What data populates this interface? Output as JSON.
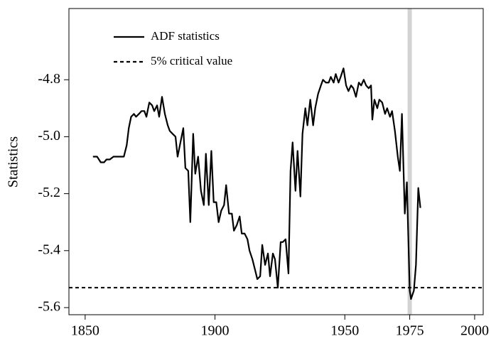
{
  "chart_data": {
    "type": "line",
    "y_label": "Statistics",
    "xlim": [
      1843.75,
      2003.3
    ],
    "ylim": [
      -5.625,
      -4.55
    ],
    "xticks": [
      1850,
      1900,
      1950,
      1975,
      2000
    ],
    "yticks": [
      -4.8,
      {
        "value": -5,
        "label": "-5.0"
      },
      -5.2,
      -5.4,
      -5.6
    ],
    "legend": "upper left",
    "highlight_x": 1975,
    "highlight_color": "#d3d3d3",
    "x": [
      1853.0,
      1854.6,
      1856.0,
      1857.3,
      1858.2,
      1859.5,
      1860.9,
      1862.2,
      1863.6,
      1864.9,
      1866.0,
      1866.8,
      1867.7,
      1868.8,
      1869.6,
      1870.7,
      1871.7,
      1872.8,
      1873.6,
      1874.7,
      1875.8,
      1876.6,
      1877.7,
      1878.5,
      1879.6,
      1880.7,
      1881.8,
      1882.6,
      1883.7,
      1884.8,
      1885.6,
      1886.7,
      1887.8,
      1888.6,
      1889.7,
      1890.5,
      1891.6,
      1892.4,
      1893.5,
      1894.6,
      1895.7,
      1896.5,
      1897.6,
      1898.6,
      1899.5,
      1900.5,
      1901.4,
      1902.4,
      1903.5,
      1904.3,
      1905.4,
      1906.5,
      1907.3,
      1908.4,
      1909.5,
      1910.3,
      1911.4,
      1912.5,
      1913.3,
      1914.4,
      1915.5,
      1916.3,
      1917.4,
      1918.2,
      1919.3,
      1920.4,
      1921.2,
      1922.3,
      1923.1,
      1924.2,
      1925.3,
      1926.1,
      1927.2,
      1928.3,
      1929.1,
      1929.9,
      1931.0,
      1931.8,
      1932.9,
      1933.7,
      1934.8,
      1935.6,
      1936.7,
      1937.8,
      1938.6,
      1939.7,
      1940.8,
      1941.6,
      1942.7,
      1943.8,
      1944.6,
      1945.7,
      1946.5,
      1947.6,
      1948.4,
      1949.5,
      1950.5,
      1951.4,
      1952.4,
      1953.3,
      1954.3,
      1955.4,
      1956.3,
      1957.3,
      1958.2,
      1959.2,
      1960.1,
      1960.6,
      1961.4,
      1962.5,
      1963.3,
      1964.4,
      1965.5,
      1966.3,
      1967.4,
      1968.2,
      1969.3,
      1970.4,
      1971.2,
      1972.0,
      1973.1,
      1973.9,
      1975.0,
      1975.5,
      1976.6,
      1977.4,
      1978.3,
      1979.1
    ],
    "series": [
      {
        "name": "ADF statistics",
        "color": "#000000",
        "dash": "solid",
        "values": [
          -5.07,
          -5.07,
          -5.09,
          -5.09,
          -5.08,
          -5.08,
          -5.07,
          -5.07,
          -5.07,
          -5.07,
          -5.03,
          -4.97,
          -4.93,
          -4.92,
          -4.93,
          -4.92,
          -4.91,
          -4.91,
          -4.93,
          -4.88,
          -4.89,
          -4.91,
          -4.89,
          -4.93,
          -4.86,
          -4.92,
          -4.96,
          -4.98,
          -4.99,
          -5.0,
          -5.07,
          -5.02,
          -4.97,
          -5.11,
          -5.12,
          -5.3,
          -4.99,
          -5.13,
          -5.07,
          -5.19,
          -5.24,
          -5.06,
          -5.24,
          -5.05,
          -5.23,
          -5.23,
          -5.3,
          -5.26,
          -5.24,
          -5.17,
          -5.27,
          -5.27,
          -5.33,
          -5.31,
          -5.28,
          -5.34,
          -5.34,
          -5.36,
          -5.4,
          -5.43,
          -5.47,
          -5.5,
          -5.49,
          -5.38,
          -5.45,
          -5.41,
          -5.49,
          -5.41,
          -5.43,
          -5.53,
          -5.37,
          -5.37,
          -5.36,
          -5.48,
          -5.12,
          -5.02,
          -5.19,
          -5.05,
          -5.21,
          -4.99,
          -4.9,
          -4.96,
          -4.87,
          -4.96,
          -4.9,
          -4.85,
          -4.82,
          -4.8,
          -4.81,
          -4.81,
          -4.79,
          -4.81,
          -4.78,
          -4.81,
          -4.79,
          -4.76,
          -4.82,
          -4.84,
          -4.82,
          -4.83,
          -4.86,
          -4.81,
          -4.82,
          -4.8,
          -4.82,
          -4.83,
          -4.82,
          -4.94,
          -4.87,
          -4.9,
          -4.87,
          -4.88,
          -4.92,
          -4.9,
          -4.93,
          -4.91,
          -4.98,
          -5.07,
          -5.12,
          -4.92,
          -5.27,
          -5.16,
          -5.54,
          -5.57,
          -5.54,
          -5.45,
          -5.18,
          -5.25
        ]
      }
    ],
    "reference_lines": [
      {
        "name": "5% critical value",
        "y": -5.53,
        "color": "#000000",
        "dash": "dashed"
      }
    ]
  }
}
